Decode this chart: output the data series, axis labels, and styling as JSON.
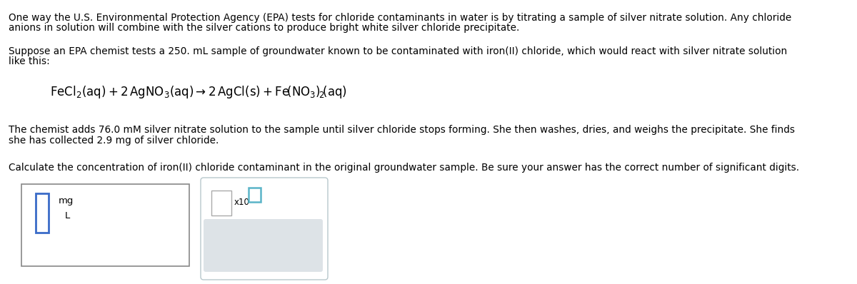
{
  "bg_color": "#ffffff",
  "text_color": "#000000",
  "teal_color": "#3a6bc8",
  "teal_light": "#5ab4c8",
  "gray_color": "#d8dee2",
  "border_color": "#888888",
  "panel_border": "#b8c8cc",
  "paragraph1_line1": "One way the U.S. Environmental Protection Agency (EPA) tests for chloride contaminants in water is by titrating a sample of silver nitrate solution. Any chloride",
  "paragraph1_line2": "anions in solution will combine with the silver cations to produce bright white silver chloride precipitate.",
  "paragraph2_line1": "Suppose an EPA chemist tests a 250. mL sample of groundwater known to be contaminated with iron(II) chloride, which would react with silver nitrate solution",
  "paragraph2_line2": "like this:",
  "paragraph3_line1": "The chemist adds 76.0 mM silver nitrate solution to the sample until silver chloride stops forming. She then washes, dries, and weighs the precipitate. She finds",
  "paragraph3_line2": "she has collected 2.9 mg of silver chloride.",
  "paragraph4": "Calculate the concentration of iron(II) chloride contaminant in the original groundwater sample. Be sure your answer has the correct number of significant digits.",
  "font_size": 9.8,
  "eq_font_size": 12.0
}
